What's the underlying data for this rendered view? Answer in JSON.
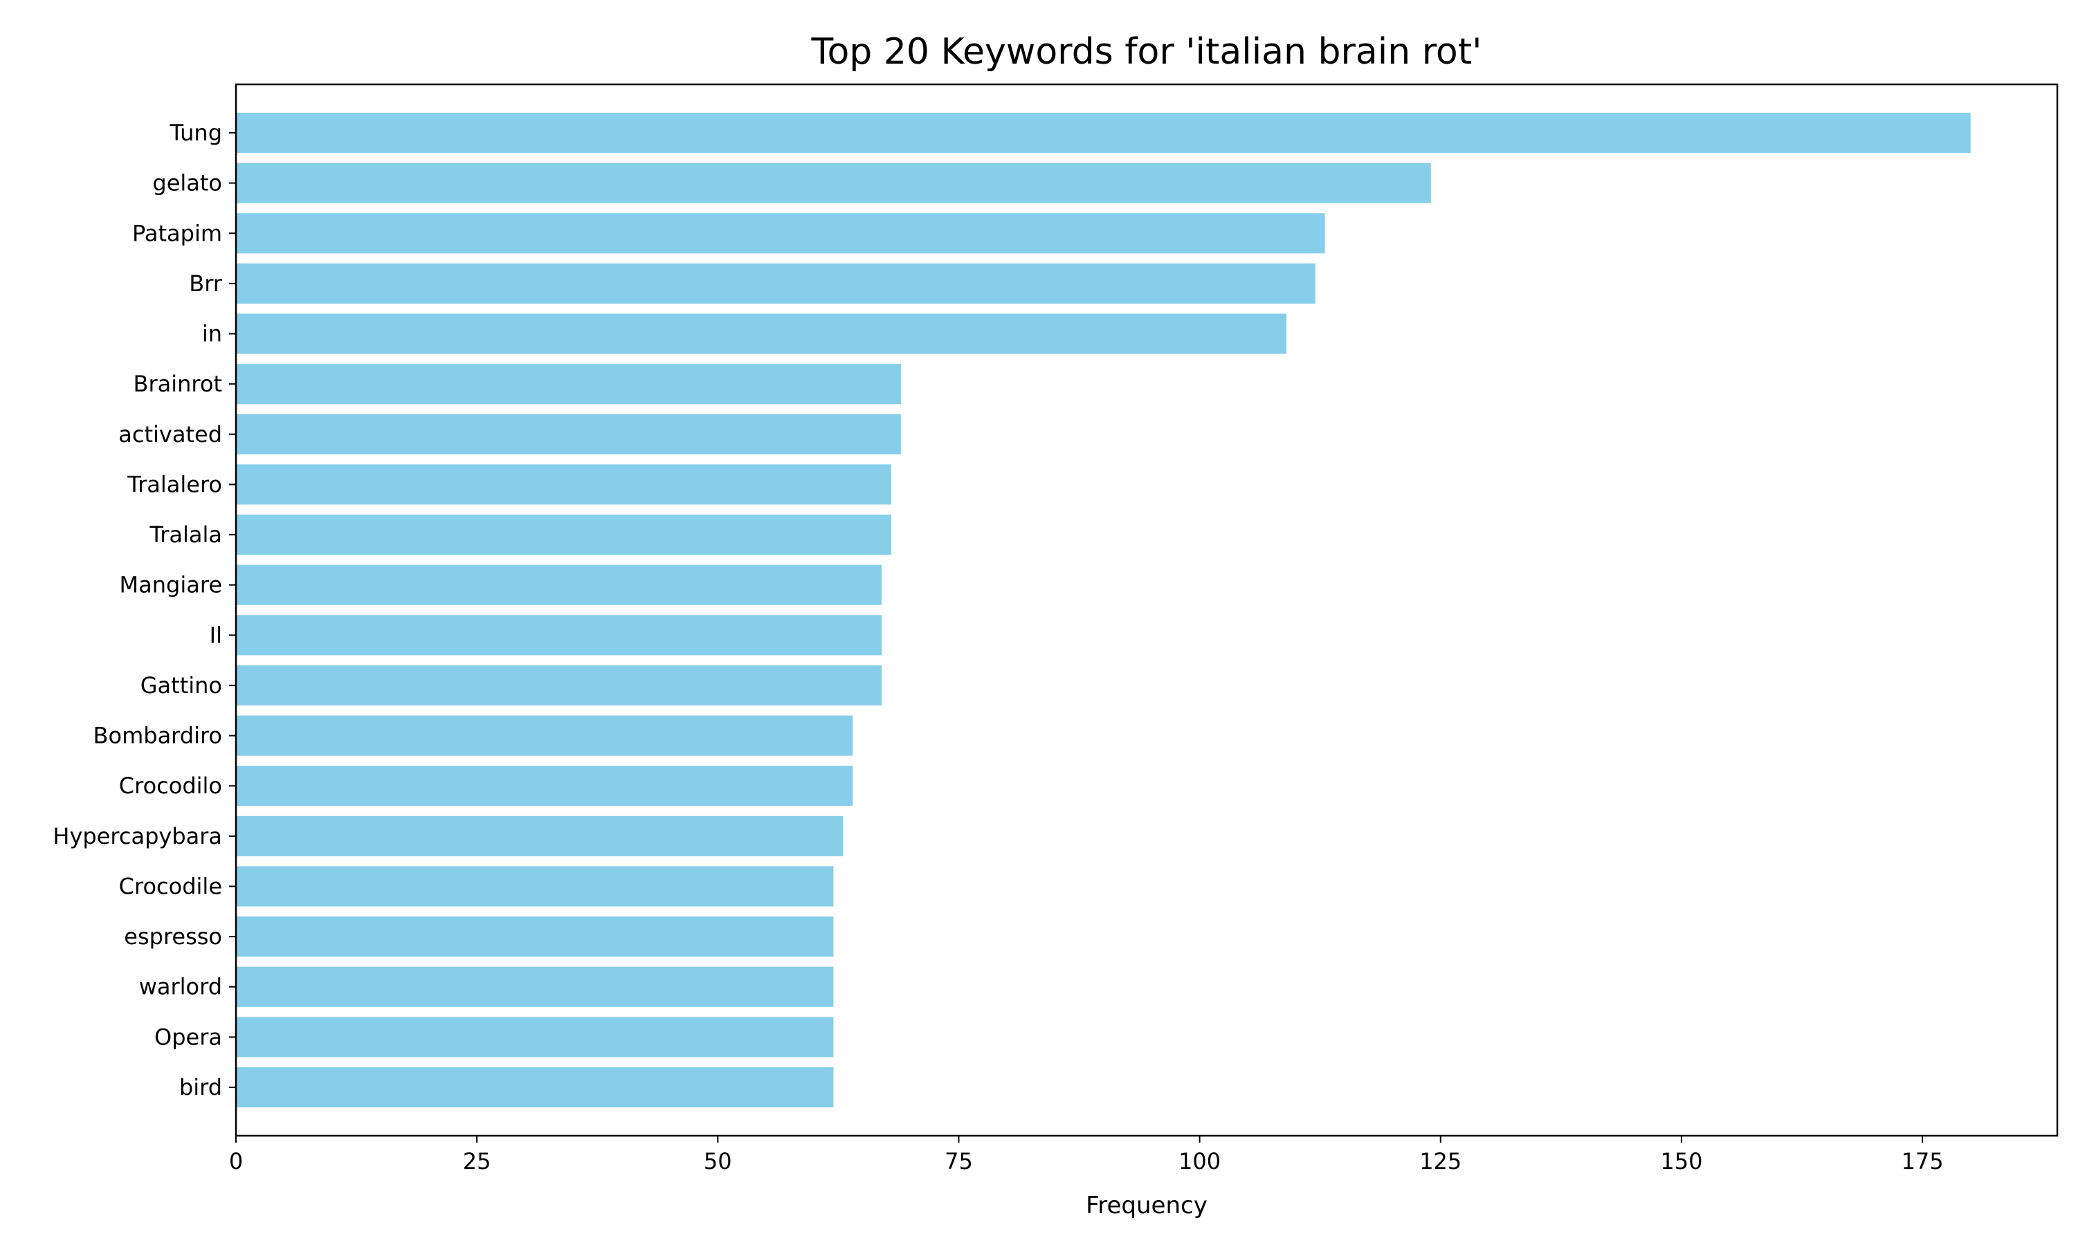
{
  "chart_data": {
    "type": "bar",
    "orientation": "horizontal",
    "title": "Top 20 Keywords for 'italian brain rot'",
    "xlabel": "Frequency",
    "ylabel": "",
    "xlim": [
      0,
      189
    ],
    "xticks": [
      0,
      25,
      50,
      75,
      100,
      125,
      150,
      175
    ],
    "grid": false,
    "bar_color": "#87CEEB",
    "categories": [
      "Tung",
      "gelato",
      "Patapim",
      "Brr",
      "in",
      "Brainrot",
      "activated",
      "Tralalero",
      "Tralala",
      "Mangiare",
      "Il",
      "Gattino",
      "Bombardiro",
      "Crocodilo",
      "Hypercapybara",
      "Crocodile",
      "espresso",
      "warlord",
      "Opera",
      "bird"
    ],
    "values": [
      180,
      124,
      113,
      112,
      109,
      69,
      69,
      68,
      68,
      67,
      67,
      67,
      64,
      64,
      63,
      62,
      62,
      62,
      62,
      62
    ]
  }
}
